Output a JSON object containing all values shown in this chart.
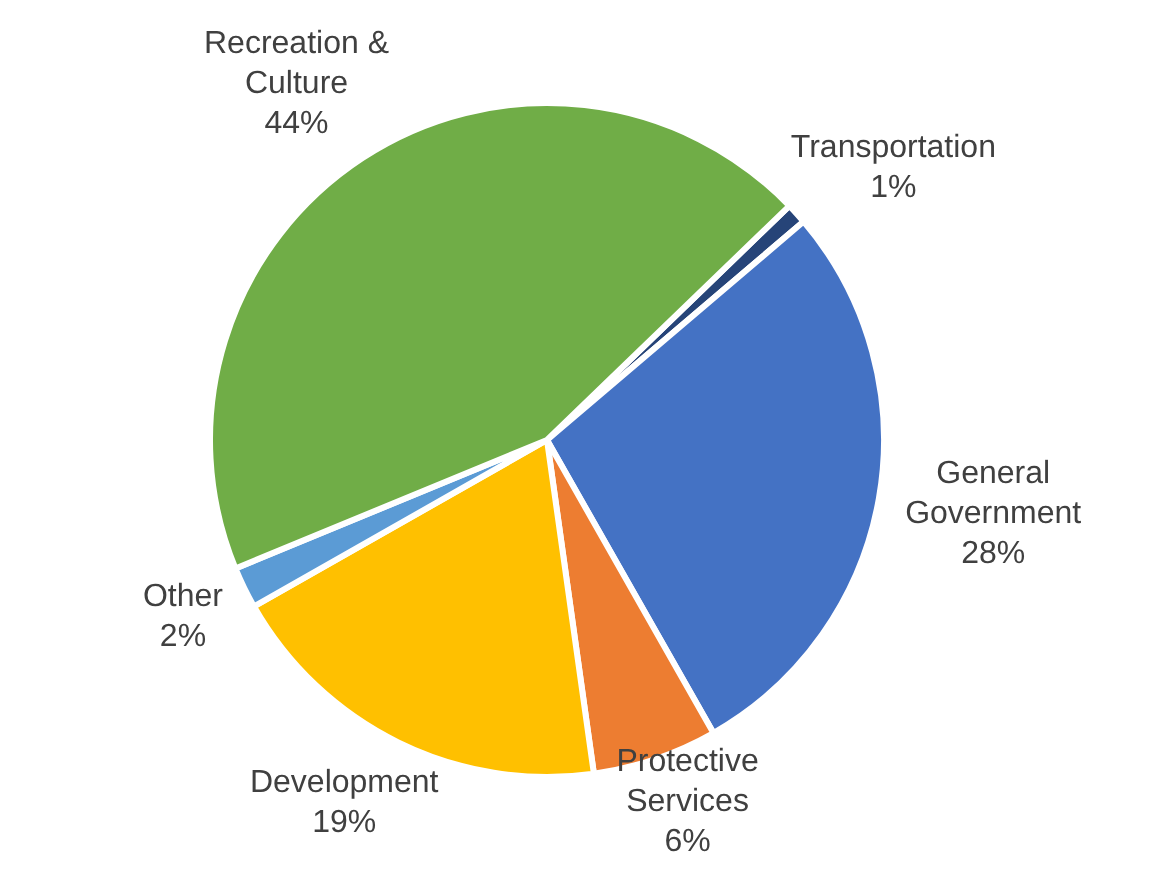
{
  "chart_data": {
    "type": "pie",
    "categories": [
      "Transportation",
      "General Government",
      "Protective Services",
      "Development",
      "Other",
      "Recreation & Culture"
    ],
    "values": [
      1,
      28,
      6,
      19,
      2,
      44
    ],
    "value_labels": [
      "1%",
      "28%",
      "6%",
      "19%",
      "2%",
      "44%"
    ],
    "colors": [
      "#264478",
      "#4472c4",
      "#ed7d31",
      "#ffc000",
      "#5b9bd5",
      "#70ad47"
    ],
    "legend": false
  }
}
